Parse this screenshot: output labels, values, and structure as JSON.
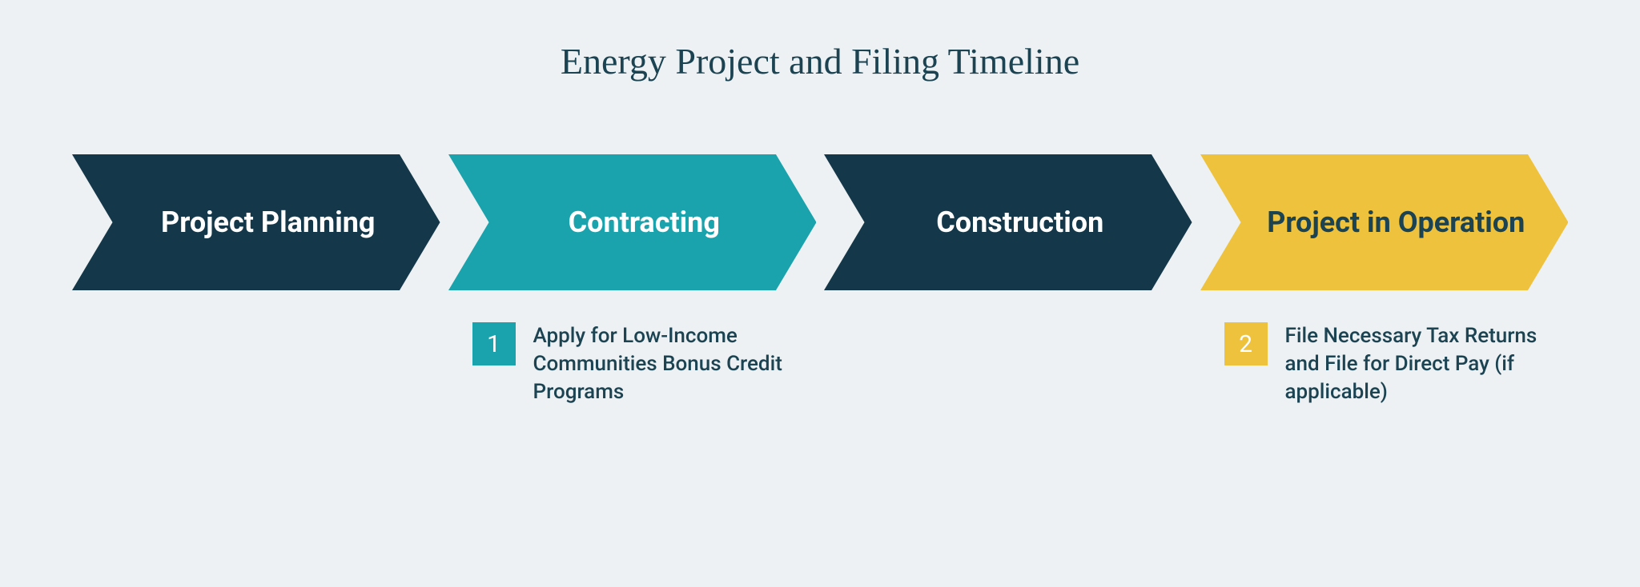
{
  "title": "Energy Project and Filing Timeline",
  "title_color": "#1b4352",
  "title_fontsize": 46,
  "background_color": "#edf1f3",
  "chevron_height": 170,
  "chevron_label_fontsize": 36,
  "stages": [
    {
      "label": "Project Planning",
      "fill": "#14384a",
      "text_color": "#ffffff"
    },
    {
      "label": "Contracting",
      "fill": "#1aa3ac",
      "text_color": "#ffffff"
    },
    {
      "label": "Construction",
      "fill": "#14384a",
      "text_color": "#ffffff"
    },
    {
      "label": "Project in Operation",
      "fill": "#eec23d",
      "text_color": "#1b4352"
    }
  ],
  "footnotes": [
    null,
    {
      "badge_number": "1",
      "badge_fill": "#1aa3ac",
      "badge_text_color": "#ffffff",
      "text": "Apply for Low-Income Communities Bonus Credit Programs",
      "text_color": "#1b4352"
    },
    null,
    {
      "badge_number": "2",
      "badge_fill": "#eec23d",
      "badge_text_color": "#ffffff",
      "text": "File Necessary Tax Returns and File for Direct Pay (if applicable)",
      "text_color": "#1b4352"
    }
  ],
  "footnote_fontsize": 26,
  "badge_size": 54,
  "badge_fontsize": 30
}
